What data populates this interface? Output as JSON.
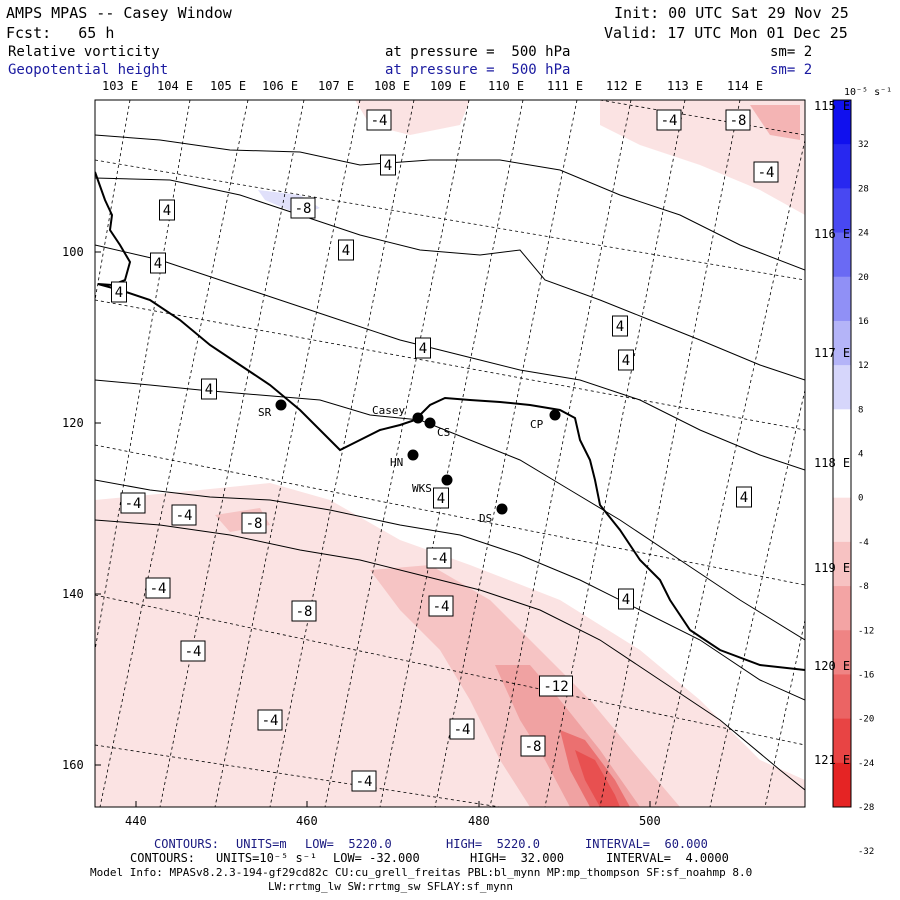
{
  "header": {
    "title": "AMPS MPAS -- Casey Window",
    "init": "Init: 00 UTC Sat 29 Nov 25",
    "fcst": "Fcst:   65 h",
    "valid": "Valid: 17 UTC Mon 01 Dec 25",
    "field1": {
      "name": "Relative vorticity",
      "pressure": "at pressure =  500 hPa",
      "sm": "sm= 2"
    },
    "field2": {
      "name": "Geopotential height",
      "pressure": "at pressure =  500 hPa",
      "sm": "sm= 2"
    }
  },
  "colors": {
    "field2": "#1a1aa0",
    "contours_line": "#1a1a80"
  },
  "lon_top": [
    "103 E",
    "104 E",
    "105 E",
    "106 E",
    "107 E",
    "108 E",
    "109 E",
    "110 E",
    "111 E",
    "112 E",
    "113 E",
    "114 E"
  ],
  "lon_right": [
    "115 E",
    "116 E",
    "117 E",
    "118 E",
    "119 E",
    "120 E",
    "121 E"
  ],
  "x_ticks": [
    "440",
    "460",
    "480",
    "500"
  ],
  "y_ticks": [
    "100",
    "120",
    "140",
    "160"
  ],
  "stations": [
    {
      "name": "SR"
    },
    {
      "name": "Casey"
    },
    {
      "name": "CS"
    },
    {
      "name": "HN"
    },
    {
      "name": "CP"
    },
    {
      "name": "WKS"
    },
    {
      "name": "DS"
    }
  ],
  "contour_labels": [
    "-4",
    "-4",
    "-8",
    "-4",
    "4",
    "4",
    "4",
    "4",
    "4",
    "-8",
    "4",
    "4",
    "4",
    "4",
    "4",
    "4",
    "-4",
    "-4",
    "-8",
    "-4",
    "-4",
    "-8",
    "4",
    "-4",
    "-4",
    "-4",
    "-12",
    "-4",
    "-8",
    "-4"
  ],
  "colorbar": {
    "unit": "10⁻⁵ s⁻¹",
    "labels": [
      "32",
      "28",
      "24",
      "20",
      "16",
      "12",
      "8",
      "4",
      "0",
      "-4",
      "-8",
      "-12",
      "-16",
      "-20",
      "-24",
      "-28",
      "-32"
    ],
    "colors": [
      "#1010ee",
      "#2828f0",
      "#4848f2",
      "#6a6af4",
      "#9090f6",
      "#b4b4f8",
      "#d6d6fb",
      "#ffffff",
      "#ffffff",
      "#fbe0e0",
      "#f7c2c2",
      "#f3a4a4",
      "#ef8484",
      "#eb6464",
      "#e84444",
      "#e52424"
    ]
  },
  "footer": {
    "contours_m": {
      "label": "CONTOURS:",
      "units": "UNITS=m",
      "low": "LOW=  5220.0",
      "high": "HIGH=  5220.0",
      "interval": "INTERVAL=  60.000"
    },
    "contours_vort": {
      "label": "CONTOURS:",
      "units": "UNITS=10⁻⁵ s⁻¹",
      "low": "LOW= -32.000",
      "high": "HIGH=  32.000",
      "interval": "INTERVAL=  4.0000"
    },
    "model_info": "Model Info: MPASv8.2.3-194-gf29cd82c CU:cu_grell_freitas PBL:bl_mynn MP:mp_thompson SF:sf_noahmp 8.0",
    "model_info2": "LW:rrtmg_lw SW:rrtmg_sw SFLAY:sf_mynn"
  }
}
